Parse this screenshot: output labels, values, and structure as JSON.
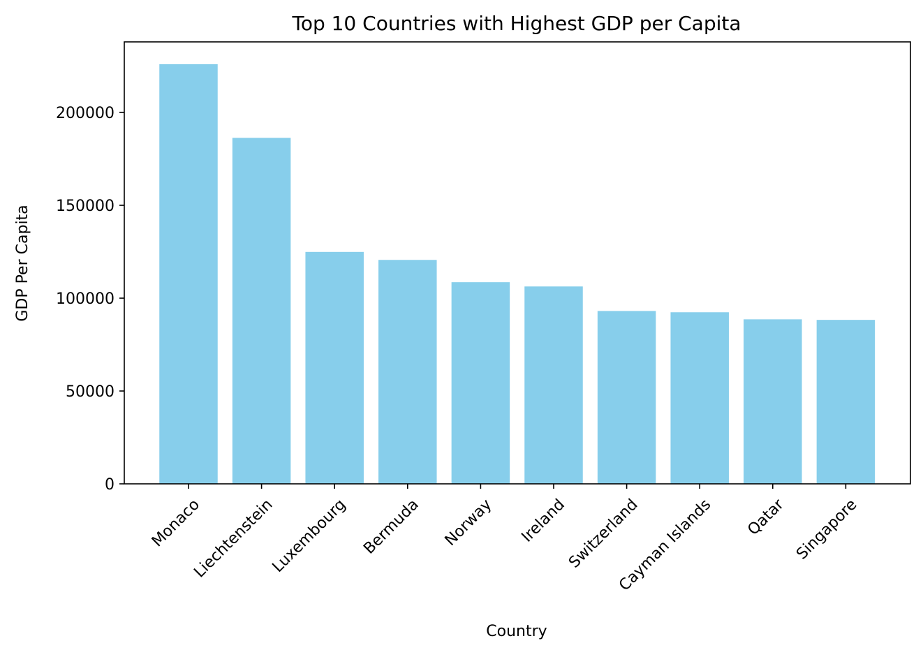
{
  "chart_data": {
    "type": "bar",
    "title": "Top 10 Countries with Highest GDP per Capita",
    "xlabel": "Country",
    "ylabel": "GDP Per Capita",
    "categories": [
      "Monaco",
      "Liechtenstein",
      "Luxembourg",
      "Bermuda",
      "Norway",
      "Ireland",
      "Switzerland",
      "Cayman Islands",
      "Qatar",
      "Singapore"
    ],
    "values": [
      226000,
      186300,
      124900,
      120600,
      108600,
      106300,
      93100,
      92400,
      88600,
      88300
    ],
    "ylim": [
      0,
      238000
    ],
    "yticks": [
      0,
      50000,
      100000,
      150000,
      200000
    ],
    "ytick_labels": [
      "0",
      "50000",
      "100000",
      "150000",
      "200000"
    ],
    "bar_color": "#87CEEB",
    "grid": false,
    "legend": "none"
  }
}
